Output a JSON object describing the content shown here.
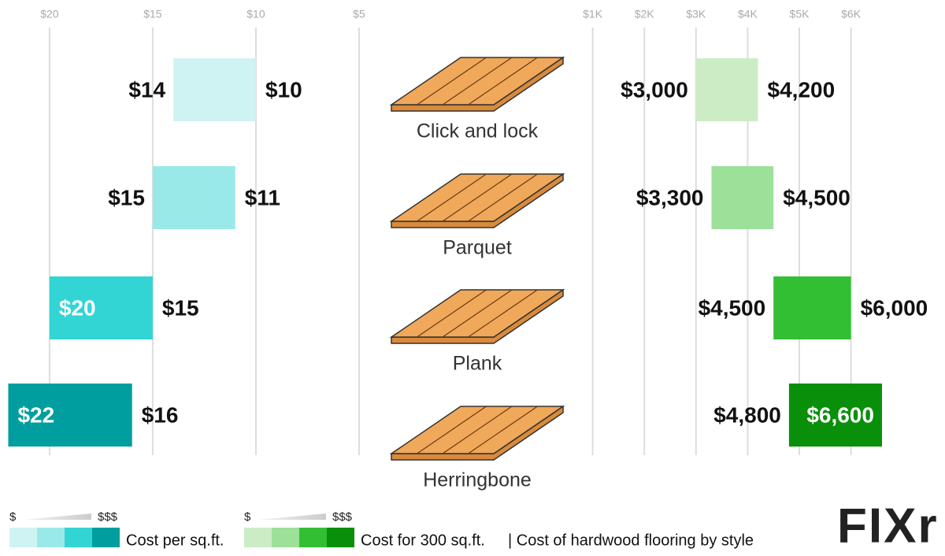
{
  "chart_data": [
    {
      "type": "range-bar",
      "categories": [
        "Click and lock",
        "Parquet",
        "Plank",
        "Herringbone"
      ],
      "low": [
        10,
        11,
        15,
        16
      ],
      "high": [
        14,
        15,
        20,
        22
      ],
      "low_labels": [
        "$10",
        "$11",
        "$15",
        "$16"
      ],
      "high_labels": [
        "$14",
        "$15",
        "$20",
        "$22"
      ],
      "colors": [
        "#cff3f3",
        "#9ae9e9",
        "#33d4d4",
        "#009e9e"
      ],
      "xlim": [
        22.4,
        0
      ],
      "xticks": [
        {
          "value": 20,
          "label": "$20"
        },
        {
          "value": 15,
          "label": "$15"
        },
        {
          "value": 10,
          "label": "$10"
        },
        {
          "value": 5,
          "label": "$5"
        }
      ],
      "grid": true,
      "legend": "Cost per sq.ft.",
      "scale_labels": [
        "$",
        "$$$"
      ]
    },
    {
      "type": "range-bar",
      "low": [
        3000,
        3300,
        4500,
        4800
      ],
      "high": [
        4200,
        4500,
        6000,
        6600
      ],
      "low_labels": [
        "$3,000",
        "$3,300",
        "$4,500",
        "$4,800"
      ],
      "high_labels": [
        "$4,200",
        "$4,500",
        "$6,000",
        "$6,600"
      ],
      "colors": [
        "#ccecc6",
        "#9de09a",
        "#33bf33",
        "#0a8f0a"
      ],
      "xlim": [
        0,
        7820
      ],
      "xticks": [
        {
          "value": 1000,
          "label": "$1K"
        },
        {
          "value": 2000,
          "label": "$2K"
        },
        {
          "value": 3000,
          "label": "$3K"
        },
        {
          "value": 4000,
          "label": "$4K"
        },
        {
          "value": 5000,
          "label": "$5K"
        },
        {
          "value": 6000,
          "label": "$6K"
        }
      ],
      "grid": true,
      "legend": "Cost for 300 sq.ft.",
      "scale_labels": [
        "$",
        "$$$"
      ]
    }
  ],
  "subtitle": "| Cost of hardwood flooring by style",
  "brand": "FIXr"
}
